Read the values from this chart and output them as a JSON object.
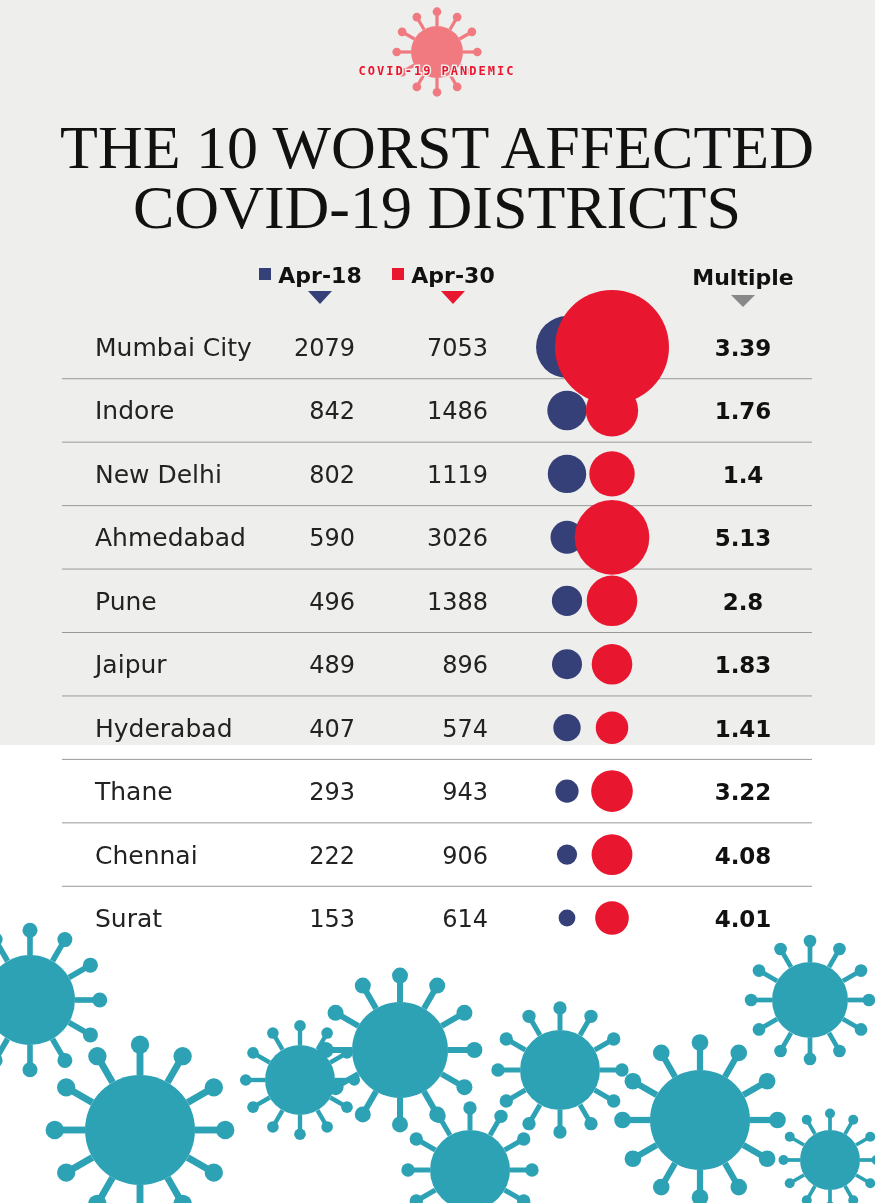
{
  "chart_data": {
    "type": "other",
    "subtitle": "COVID-19 PANDEMIC",
    "title": "THE 10 WORST AFFECTED\nCOVID-19 DISTRICTS",
    "categories": [
      "Mumbai City",
      "Indore",
      "New Delhi",
      "Ahmedabad",
      "Pune",
      "Jaipur",
      "Hyderabad",
      "Thane",
      "Chennai",
      "Surat"
    ],
    "series": [
      {
        "name": "Apr-18",
        "color": "#353f78",
        "values": [
          2079,
          842,
          802,
          590,
          496,
          489,
          407,
          293,
          222,
          153
        ]
      },
      {
        "name": "Apr-30",
        "color": "#e8162f",
        "values": [
          7053,
          1486,
          1119,
          3026,
          1388,
          896,
          574,
          943,
          906,
          614
        ]
      },
      {
        "name": "Multiple",
        "values": [
          3.39,
          1.76,
          1.4,
          5.13,
          2.8,
          1.83,
          1.41,
          3.22,
          4.08,
          4.01
        ]
      }
    ],
    "data_labels": true
  }
}
